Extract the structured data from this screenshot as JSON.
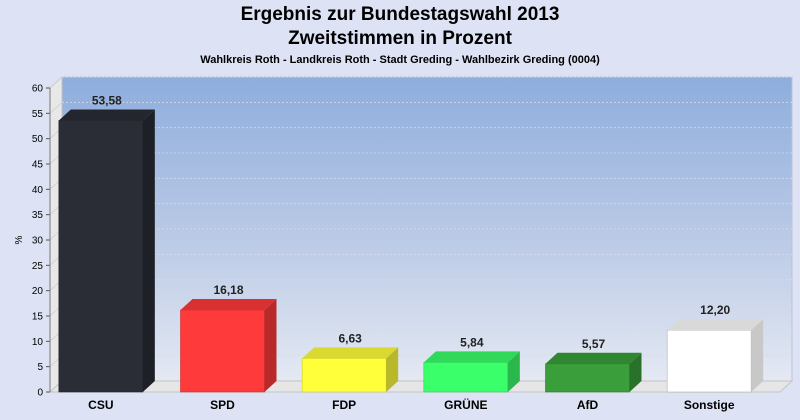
{
  "chart_data": {
    "type": "bar",
    "title": "Ergebnis zur Bundestagswahl 2013",
    "subtitle": "Zweitstimmen in Prozent",
    "description": "Wahlkreis Roth - Landkreis Roth - Stadt Greding - Wahlbezirk Greding (0004)",
    "ylabel": "%",
    "xlabel": "",
    "ylim": [
      0,
      60
    ],
    "yticks": [
      0,
      5,
      10,
      15,
      20,
      25,
      30,
      35,
      40,
      45,
      50,
      55,
      60
    ],
    "grid": true,
    "categories": [
      "CSU",
      "SPD",
      "FDP",
      "GRÜNE",
      "AfD",
      "Sonstige"
    ],
    "values": [
      53.58,
      16.18,
      6.63,
      5.84,
      5.57,
      12.2
    ],
    "value_labels": [
      "53,58",
      "16,18",
      "6,63",
      "5,84",
      "5,57",
      "12,20"
    ],
    "colors": [
      "#2a2d36",
      "#ff3a3a",
      "#ffff3a",
      "#3aff6a",
      "#3a9e3a",
      "#ffffff"
    ]
  }
}
